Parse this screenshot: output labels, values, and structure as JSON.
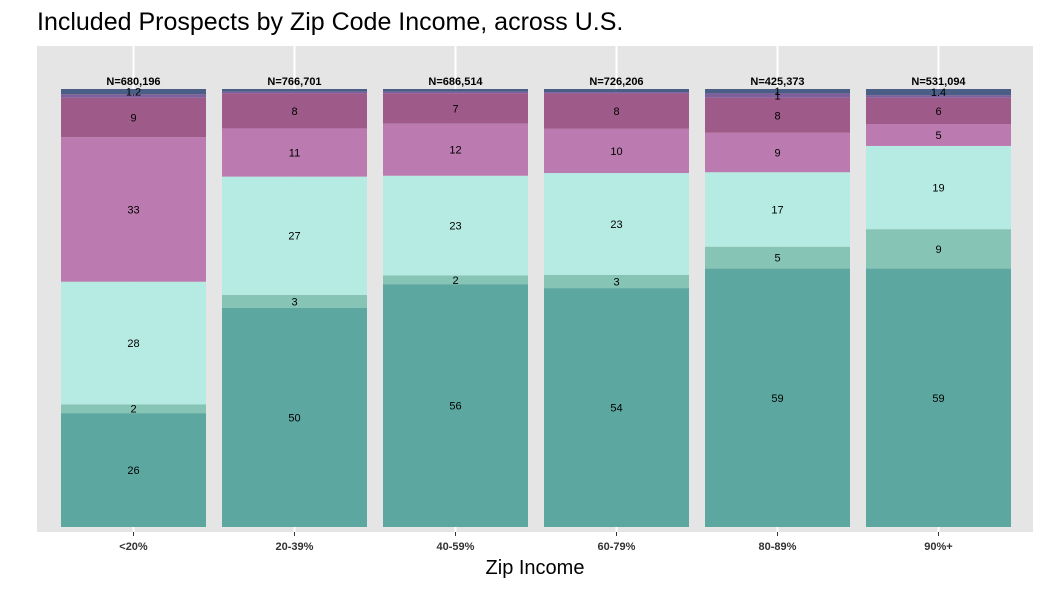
{
  "chart_data": {
    "type": "bar",
    "stacked": true,
    "percent_stacked": true,
    "title": "Included Prospects by Zip Code Income, across U.S.",
    "xlabel": "Zip Income",
    "ylabel": "",
    "ylim": [
      0,
      100
    ],
    "grid": true,
    "legend": "none",
    "categories": [
      "<20%",
      "20-39%",
      "40-59%",
      "60-79%",
      "80-89%",
      "90%+"
    ],
    "totals": [
      "N=680,196",
      "N=766,701",
      "N=686,514",
      "N=726,206",
      "N=425,373",
      "N=531,094"
    ],
    "series": [
      {
        "values": [
          26,
          50,
          56,
          54,
          59,
          59
        ],
        "color": "#5ca8a0"
      },
      {
        "values": [
          2,
          3,
          2,
          3,
          5,
          9
        ],
        "color": "#86c4b5"
      },
      {
        "values": [
          28,
          27,
          23,
          23,
          17,
          19
        ],
        "color": "#b6ebe4"
      },
      {
        "values": [
          33,
          11,
          12,
          10,
          9,
          5
        ],
        "color": "#bb7ab0"
      },
      {
        "values": [
          9,
          8,
          7,
          8,
          8,
          6
        ],
        "color": "#9e5b8a"
      },
      {
        "values": [
          0.8,
          0.4,
          0.4,
          0.3,
          1.0,
          0.6
        ],
        "color": "#7e5f9a"
      },
      {
        "values": [
          1.2,
          0.6,
          0.6,
          0.7,
          1.0,
          1.4
        ],
        "color": "#4b5f86"
      }
    ],
    "min_label_value": 1
  },
  "colors": {
    "panel_background": "#e5e5e5",
    "grid_line": "#ffffff"
  }
}
